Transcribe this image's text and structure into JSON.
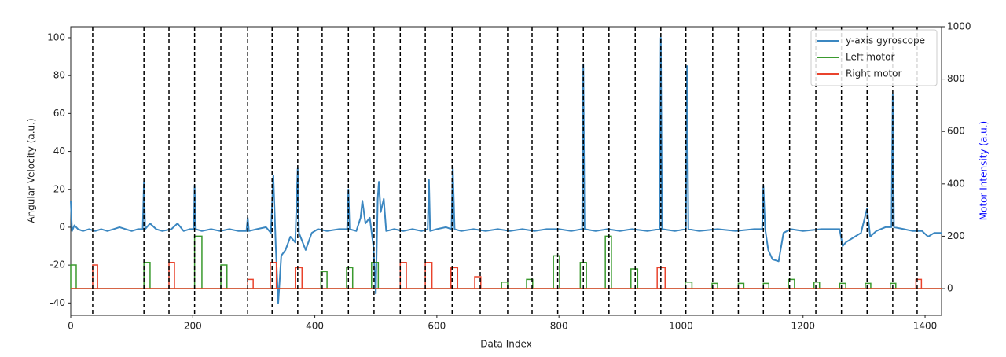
{
  "chart_data": {
    "type": "line",
    "xlabel": "Data Index",
    "ylabel": "Angular Velocity (a.u.)",
    "y2label": "Motor Intensity (a.u.)",
    "y2label_color": "#0000ff",
    "xlim": [
      0,
      1427
    ],
    "ylim": [
      -46.5,
      105.8
    ],
    "y2lim": [
      -102,
      1000
    ],
    "xticks": [
      0,
      200,
      400,
      600,
      800,
      1000,
      1200,
      1400
    ],
    "yticks": [
      -40,
      -20,
      0,
      20,
      40,
      60,
      80,
      100
    ],
    "y2ticks": [
      0,
      200,
      400,
      600,
      800,
      1000
    ],
    "legend": "upper right",
    "event_lines": {
      "color": "#000000",
      "style": "dashed",
      "x": [
        36,
        120,
        161,
        203,
        246,
        290,
        330,
        372,
        412,
        455,
        497,
        540,
        581,
        625,
        671,
        716,
        756,
        798,
        840,
        882,
        925,
        967,
        1008,
        1052,
        1094,
        1135,
        1178,
        1221,
        1263,
        1305,
        1347,
        1387
      ]
    },
    "series": [
      {
        "name": "y-axis gyroscope",
        "color": "#3b87c1",
        "x": [
          0,
          2,
          6,
          12,
          20,
          30,
          40,
          50,
          60,
          70,
          80,
          90,
          100,
          110,
          118,
          120,
          122,
          130,
          140,
          150,
          165,
          175,
          185,
          195,
          202,
          203,
          205,
          215,
          230,
          245,
          260,
          275,
          288,
          290,
          292,
          305,
          320,
          328,
          332,
          336,
          340,
          345,
          352,
          360,
          368,
          372,
          374,
          385,
          395,
          405,
          420,
          440,
          453,
          455,
          457,
          468,
          475,
          478,
          483,
          490,
          496,
          500,
          503,
          505,
          508,
          513,
          517,
          530,
          545,
          560,
          575,
          585,
          587,
          589,
          600,
          615,
          624,
          626,
          629,
          640,
          660,
          680,
          700,
          720,
          740,
          760,
          780,
          800,
          820,
          838,
          840,
          842,
          860,
          880,
          900,
          920,
          945,
          965,
          967,
          969,
          990,
          1008,
          1010,
          1012,
          1030,
          1060,
          1090,
          1120,
          1133,
          1135,
          1138,
          1143,
          1150,
          1160,
          1168,
          1180,
          1200,
          1230,
          1260,
          1265,
          1270,
          1285,
          1295,
          1305,
          1310,
          1320,
          1335,
          1345,
          1347,
          1349,
          1365,
          1380,
          1395,
          1405,
          1415,
          1427
        ],
        "values": [
          14,
          -2,
          1,
          -1,
          -2,
          -1,
          -2,
          -1,
          -2,
          -1,
          0,
          -1,
          -2,
          -1,
          -1,
          24,
          -1,
          2,
          -1,
          -2,
          -1,
          2,
          -2,
          -1,
          -1,
          22,
          -1,
          -2,
          -1,
          -2,
          -1,
          -2,
          -2,
          5,
          -2,
          -1,
          0,
          -3,
          27,
          -10,
          -40,
          -15,
          -12,
          -5,
          -8,
          31,
          -3,
          -12,
          -3,
          -1,
          -2,
          -1,
          -1,
          20,
          -1,
          -2,
          5,
          14,
          2,
          5,
          -10,
          -35,
          15,
          24,
          8,
          15,
          -2,
          -1,
          -2,
          -1,
          -2,
          -1,
          25,
          -2,
          -1,
          0,
          -1,
          32,
          -1,
          -2,
          -1,
          -2,
          -1,
          -2,
          -1,
          -2,
          -1,
          -1,
          -2,
          -1,
          86,
          -1,
          -2,
          -1,
          -2,
          -1,
          -2,
          -1,
          100,
          -1,
          -2,
          -1,
          85,
          -1,
          -2,
          -1,
          -2,
          -1,
          -1,
          22,
          -1,
          -12,
          -17,
          -18,
          -3,
          -1,
          -2,
          -1,
          -1,
          -10,
          -8,
          -5,
          -3,
          10,
          -5,
          -2,
          0,
          0,
          70,
          0,
          -1,
          -2,
          -2,
          -5,
          -3,
          -3
        ]
      },
      {
        "name": "Left motor",
        "color": "#3a9a2e",
        "axis": "y2",
        "pulse_start": [
          0,
          120,
          203,
          246,
          410,
          452,
          493,
          706,
          747,
          791,
          835,
          876,
          918,
          1007,
          1051,
          1094,
          1135,
          1176,
          1218,
          1260,
          1302,
          1343
        ],
        "pulse_end": [
          9,
          130,
          215,
          256,
          420,
          462,
          504,
          716,
          757,
          801,
          845,
          886,
          929,
          1018,
          1060,
          1103,
          1144,
          1186,
          1227,
          1270,
          1311,
          1352
        ],
        "values": [
          90,
          100,
          200,
          90,
          65,
          80,
          100,
          25,
          35,
          125,
          100,
          200,
          75,
          25,
          20,
          20,
          20,
          35,
          25,
          20,
          20,
          20
        ]
      },
      {
        "name": "Right motor",
        "color": "#e9432c",
        "axis": "y2",
        "pulse_start": [
          36,
          161,
          290,
          327,
          368,
          540,
          581,
          623,
          662,
          961,
          1385
        ],
        "pulse_end": [
          44,
          170,
          299,
          337,
          379,
          550,
          592,
          634,
          672,
          974,
          1394
        ],
        "values": [
          90,
          100,
          35,
          100,
          80,
          100,
          100,
          80,
          45,
          80,
          35
        ]
      }
    ]
  }
}
